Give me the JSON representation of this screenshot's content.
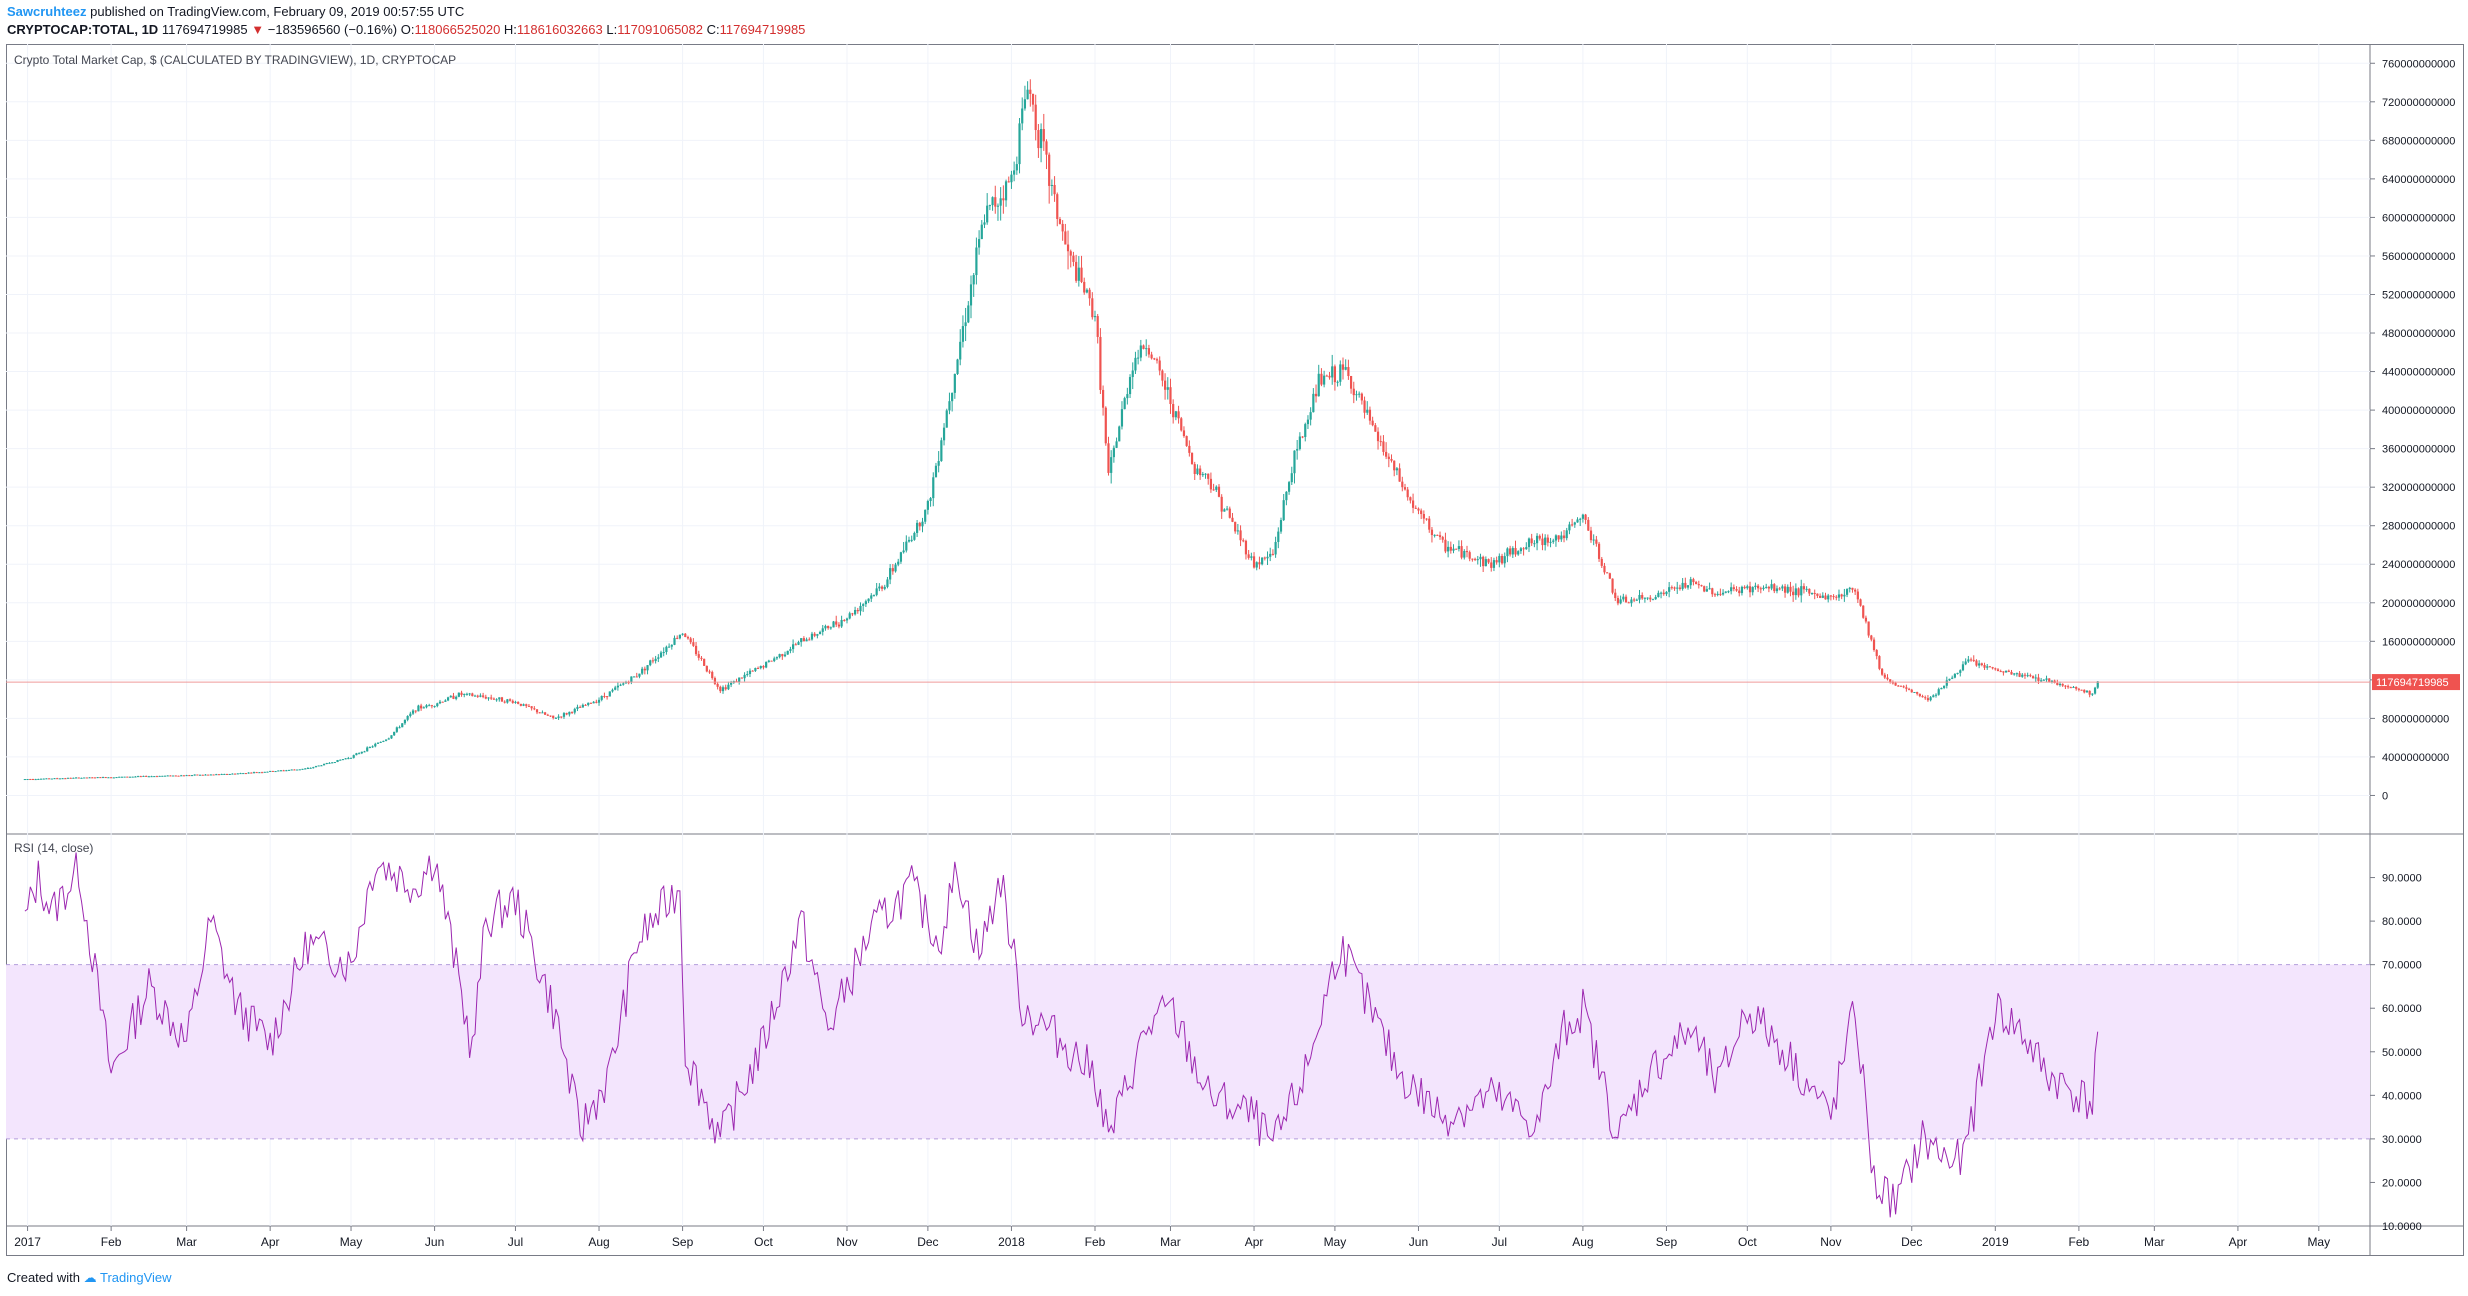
{
  "header": {
    "author": "Sawcruhteez",
    "published_text": "published on TradingView.com, February 09, 2019 00:57:55 UTC",
    "symbol": "CRYPTOCAP:TOTAL, 1D",
    "last": "117694719985",
    "change_arrow": "▼",
    "change": "−183596560 (−0.16%)",
    "o_label": "O:",
    "o": "118066525020",
    "h_label": "H:",
    "h": "118616032663",
    "l_label": "L:",
    "l": "117091065082",
    "c_label": "C:",
    "c": "117694719985"
  },
  "footer": {
    "created_with": "Created with",
    "brand": "TradingView"
  },
  "colors": {
    "up": "#26a69a",
    "down": "#ef5350",
    "rsi": "#9c27b0",
    "band": "#f3e5fd",
    "price_line": "#ef9a9a",
    "last_label_bg": "#ef5350"
  },
  "chart_data": [
    {
      "type": "candlestick",
      "title": "Crypto Total Market Cap, $ (CALCULATED BY TRADINGVIEW), 1D, CRYPTOCAP",
      "ylim": [
        -40000000000,
        780000000000
      ],
      "yticks": [
        "760000000000",
        "720000000000",
        "680000000000",
        "640000000000",
        "600000000000",
        "560000000000",
        "520000000000",
        "480000000000",
        "440000000000",
        "400000000000",
        "360000000000",
        "320000000000",
        "280000000000",
        "240000000000",
        "200000000000",
        "160000000000",
        "120000000000",
        "80000000000",
        "40000000000",
        "0"
      ],
      "ytick_values": [
        760,
        720,
        680,
        640,
        600,
        560,
        520,
        480,
        440,
        400,
        360,
        320,
        280,
        240,
        200,
        160,
        120,
        80,
        40,
        0
      ],
      "value_unit_multiplier": 1000000000,
      "last_value": 117694719985,
      "last_value_label": "117694719985",
      "close_series_billions": {
        "dates": [
          "2016-12-31",
          "2017-01-15",
          "2017-02-01",
          "2017-02-15",
          "2017-03-01",
          "2017-03-15",
          "2017-04-01",
          "2017-04-15",
          "2017-05-01",
          "2017-05-15",
          "2017-05-25",
          "2017-06-01",
          "2017-06-10",
          "2017-06-20",
          "2017-07-01",
          "2017-07-15",
          "2017-07-20",
          "2017-08-01",
          "2017-08-15",
          "2017-09-01",
          "2017-09-15",
          "2017-10-01",
          "2017-10-15",
          "2017-11-01",
          "2017-11-15",
          "2017-12-01",
          "2017-12-08",
          "2017-12-15",
          "2017-12-22",
          "2018-01-01",
          "2018-01-07",
          "2018-01-15",
          "2018-01-22",
          "2018-02-01",
          "2018-02-06",
          "2018-02-15",
          "2018-02-20",
          "2018-03-01",
          "2018-03-10",
          "2018-03-15",
          "2018-04-01",
          "2018-04-08",
          "2018-04-15",
          "2018-04-25",
          "2018-05-05",
          "2018-05-15",
          "2018-05-30",
          "2018-06-10",
          "2018-06-28",
          "2018-07-10",
          "2018-07-25",
          "2018-08-01",
          "2018-08-14",
          "2018-08-25",
          "2018-09-10",
          "2018-09-20",
          "2018-10-01",
          "2018-10-15",
          "2018-11-01",
          "2018-11-10",
          "2018-11-20",
          "2018-11-25",
          "2018-12-07",
          "2018-12-15",
          "2018-12-22",
          "2019-01-01",
          "2019-01-10",
          "2019-01-20",
          "2019-02-01",
          "2019-02-06",
          "2019-02-08"
        ],
        "values": [
          17,
          18,
          19,
          20,
          21,
          22,
          25,
          28,
          40,
          60,
          90,
          95,
          105,
          102,
          97,
          80,
          85,
          100,
          125,
          170,
          110,
          135,
          160,
          185,
          220,
          300,
          400,
          500,
          600,
          640,
          740,
          640,
          560,
          500,
          330,
          450,
          470,
          410,
          340,
          330,
          240,
          250,
          340,
          430,
          440,
          380,
          300,
          260,
          240,
          260,
          270,
          290,
          200,
          205,
          220,
          210,
          215,
          215,
          205,
          215,
          125,
          115,
          100,
          120,
          140,
          130,
          125,
          120,
          110,
          105,
          117.7
        ]
      },
      "xticks": [
        "2017",
        "Feb",
        "Mar",
        "Apr",
        "May",
        "Jun",
        "Jul",
        "Aug",
        "Sep",
        "Oct",
        "Nov",
        "Dec",
        "2018",
        "Feb",
        "Mar",
        "Apr",
        "May",
        "Jun",
        "Jul",
        "Aug",
        "Sep",
        "Oct",
        "Nov",
        "Dec",
        "2019",
        "Feb",
        "Mar",
        "Apr",
        "May"
      ]
    },
    {
      "type": "line",
      "title": "RSI (14, close)",
      "ylim": [
        10,
        100
      ],
      "yticks": [
        "90.0000",
        "80.0000",
        "70.0000",
        "60.0000",
        "50.0000",
        "40.0000",
        "30.0000",
        "20.0000",
        "10.0000"
      ],
      "ytick_values": [
        90,
        80,
        70,
        60,
        50,
        40,
        30,
        20,
        10
      ],
      "band": [
        30,
        70
      ],
      "rsi_series": {
        "dates": [
          "2016-12-31",
          "2017-01-05",
          "2017-01-10",
          "2017-01-20",
          "2017-02-01",
          "2017-02-15",
          "2017-03-01",
          "2017-03-10",
          "2017-03-20",
          "2017-04-01",
          "2017-04-15",
          "2017-05-01",
          "2017-05-10",
          "2017-05-25",
          "2017-06-01",
          "2017-06-15",
          "2017-06-20",
          "2017-07-01",
          "2017-07-16",
          "2017-07-25",
          "2017-08-05",
          "2017-08-15",
          "2017-08-31",
          "2017-09-02",
          "2017-09-15",
          "2017-10-01",
          "2017-10-15",
          "2017-10-25",
          "2017-11-10",
          "2017-11-25",
          "2017-12-05",
          "2017-12-12",
          "2017-12-20",
          "2017-12-28",
          "2018-01-05",
          "2018-01-15",
          "2018-02-01",
          "2018-02-06",
          "2018-02-20",
          "2018-03-01",
          "2018-03-15",
          "2018-04-01",
          "2018-04-08",
          "2018-04-20",
          "2018-05-03",
          "2018-05-10",
          "2018-05-25",
          "2018-06-10",
          "2018-06-28",
          "2018-07-15",
          "2018-07-25",
          "2018-08-01",
          "2018-08-14",
          "2018-08-25",
          "2018-09-10",
          "2018-09-20",
          "2018-10-01",
          "2018-10-15",
          "2018-11-01",
          "2018-11-10",
          "2018-11-17",
          "2018-11-25",
          "2018-12-05",
          "2018-12-15",
          "2018-12-20",
          "2019-01-01",
          "2019-01-10",
          "2019-01-20",
          "2019-02-01",
          "2019-02-06",
          "2019-02-08"
        ],
        "values": [
          80,
          90,
          82,
          92,
          45,
          65,
          52,
          80,
          60,
          52,
          75,
          70,
          94,
          88,
          95,
          50,
          80,
          85,
          58,
          32,
          45,
          75,
          88,
          50,
          30,
          52,
          80,
          55,
          78,
          88,
          75,
          92,
          72,
          90,
          60,
          55,
          45,
          30,
          55,
          60,
          40,
          35,
          28,
          45,
          75,
          65,
          45,
          35,
          40,
          33,
          55,
          60,
          30,
          45,
          55,
          42,
          60,
          50,
          35,
          60,
          20,
          15,
          30,
          25,
          25,
          60,
          55,
          45,
          40,
          38,
          55.6
        ]
      }
    }
  ]
}
